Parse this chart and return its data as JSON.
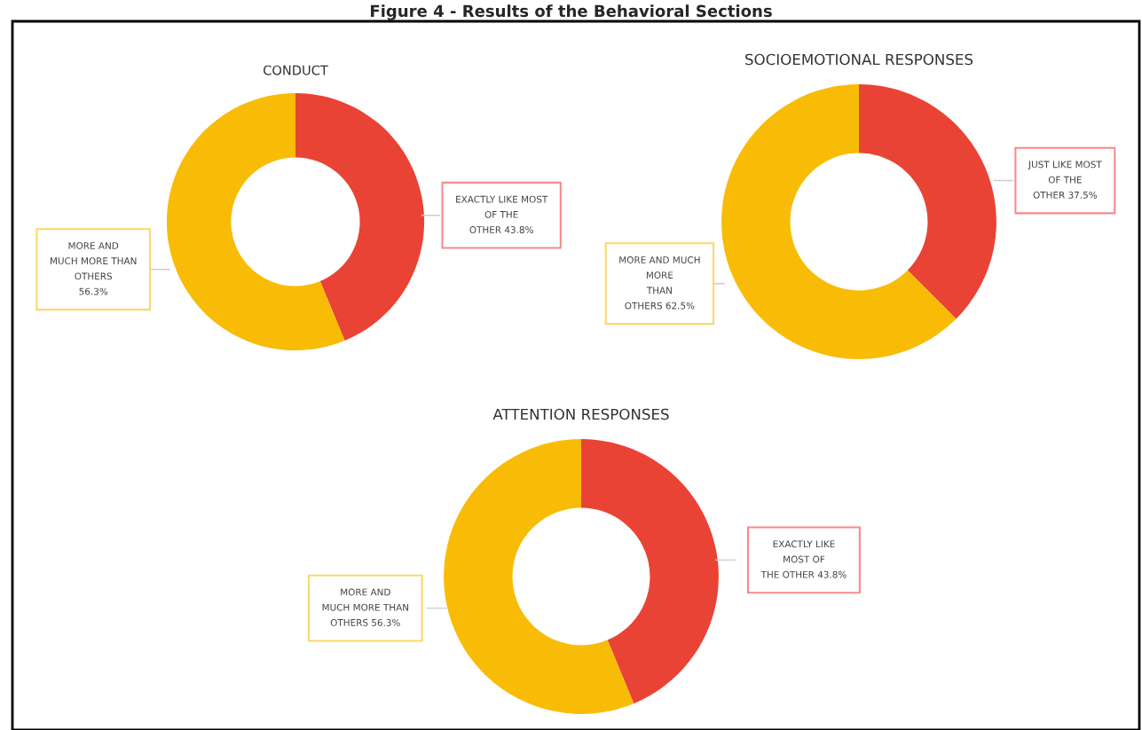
{
  "chart_data": [
    {
      "type": "donut",
      "title": "CONDUCT",
      "annotations": [
        "Figure 4 - Results of the Behavioral Sections"
      ],
      "categories": [
        "EXACTLY LIKE MOST\nOF THE\nOTHER",
        "MORE AND\nMUCH MORE THAN\nOTHERS\n"
      ],
      "values": [
        43.8,
        56.3
      ],
      "value_labels": [
        "43.8%",
        "56.3%"
      ],
      "colors": [
        "#e94335",
        "#f9bc06"
      ]
    },
    {
      "type": "donut",
      "title": "SOCIOEMOTIONAL RESPONSES",
      "categories": [
        "JUST LIKE MOST\nOF THE\nOTHER",
        "MORE AND MUCH\nMORE\nTHAN\nOTHERS"
      ],
      "values": [
        37.5,
        62.5
      ],
      "value_labels": [
        "37.5%",
        "62.5%"
      ],
      "colors": [
        "#e94335",
        "#f9bc06"
      ]
    },
    {
      "type": "donut",
      "title": "ATTENTION RESPONSES",
      "categories": [
        "EXACTLY LIKE\nMOST OF\nTHE OTHER",
        "MORE AND\nMUCH MORE THAN\nOTHERS"
      ],
      "values": [
        43.8,
        56.3
      ],
      "value_labels": [
        "43.8%",
        "56.3%"
      ],
      "colors": [
        "#e94335",
        "#f9bc06"
      ]
    }
  ]
}
